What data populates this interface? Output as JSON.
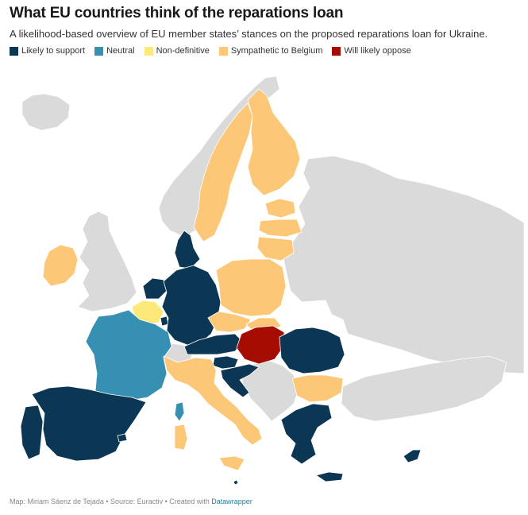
{
  "title": "What EU countries think of the reparations loan",
  "subtitle": "A likelihood-based overview of EU member states’ stances on the proposed reparations loan for Ukraine.",
  "legend": [
    {
      "label": "Likely to support",
      "color": "#0b3654"
    },
    {
      "label": "Neutral",
      "color": "#3690b1"
    },
    {
      "label": "Non-definitive",
      "color": "#fde87a"
    },
    {
      "label": "Sympathetic to Belgium",
      "color": "#fcc877"
    },
    {
      "label": "Will likely oppose",
      "color": "#a50c02"
    }
  ],
  "colors": {
    "support": "#0b3654",
    "neutral": "#3690b1",
    "nondefinitive": "#fde87a",
    "sympathetic": "#fcc877",
    "oppose": "#a50c02",
    "non_eu": "#dadada"
  },
  "footer": {
    "text": "Map: Miriam Sáenz de Tejada • Source: Euractiv • Created with ",
    "link": "Datawrapper"
  }
}
